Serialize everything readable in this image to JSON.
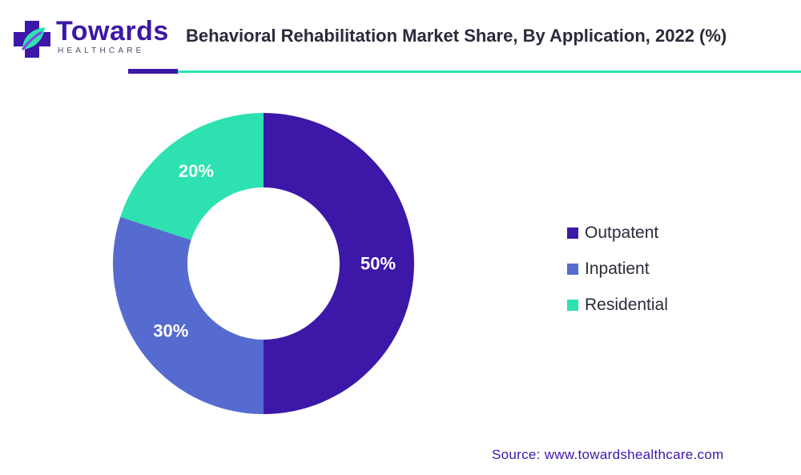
{
  "brand": {
    "name": "Towards",
    "tagline": "HEALTHCARE",
    "colors": {
      "primary": "#3d17a8",
      "accent": "#2de2b0",
      "leaf": "#8a3df0"
    }
  },
  "chart_data": {
    "type": "pie",
    "title": "Behavioral Rehabilitation Market Share, By Application, 2022 (%)",
    "donut": true,
    "slices": [
      {
        "label": "Outpatent",
        "value": 50,
        "display": "50%",
        "color": "#3d17a8"
      },
      {
        "label": "Inpatient",
        "value": 30,
        "display": "30%",
        "color": "#556bcf"
      },
      {
        "label": "Residential",
        "value": 20,
        "display": "20%",
        "color": "#2de2b0"
      }
    ],
    "legend_position": "right"
  },
  "footer": {
    "source": "Source: www.towardshealthcare.com"
  }
}
